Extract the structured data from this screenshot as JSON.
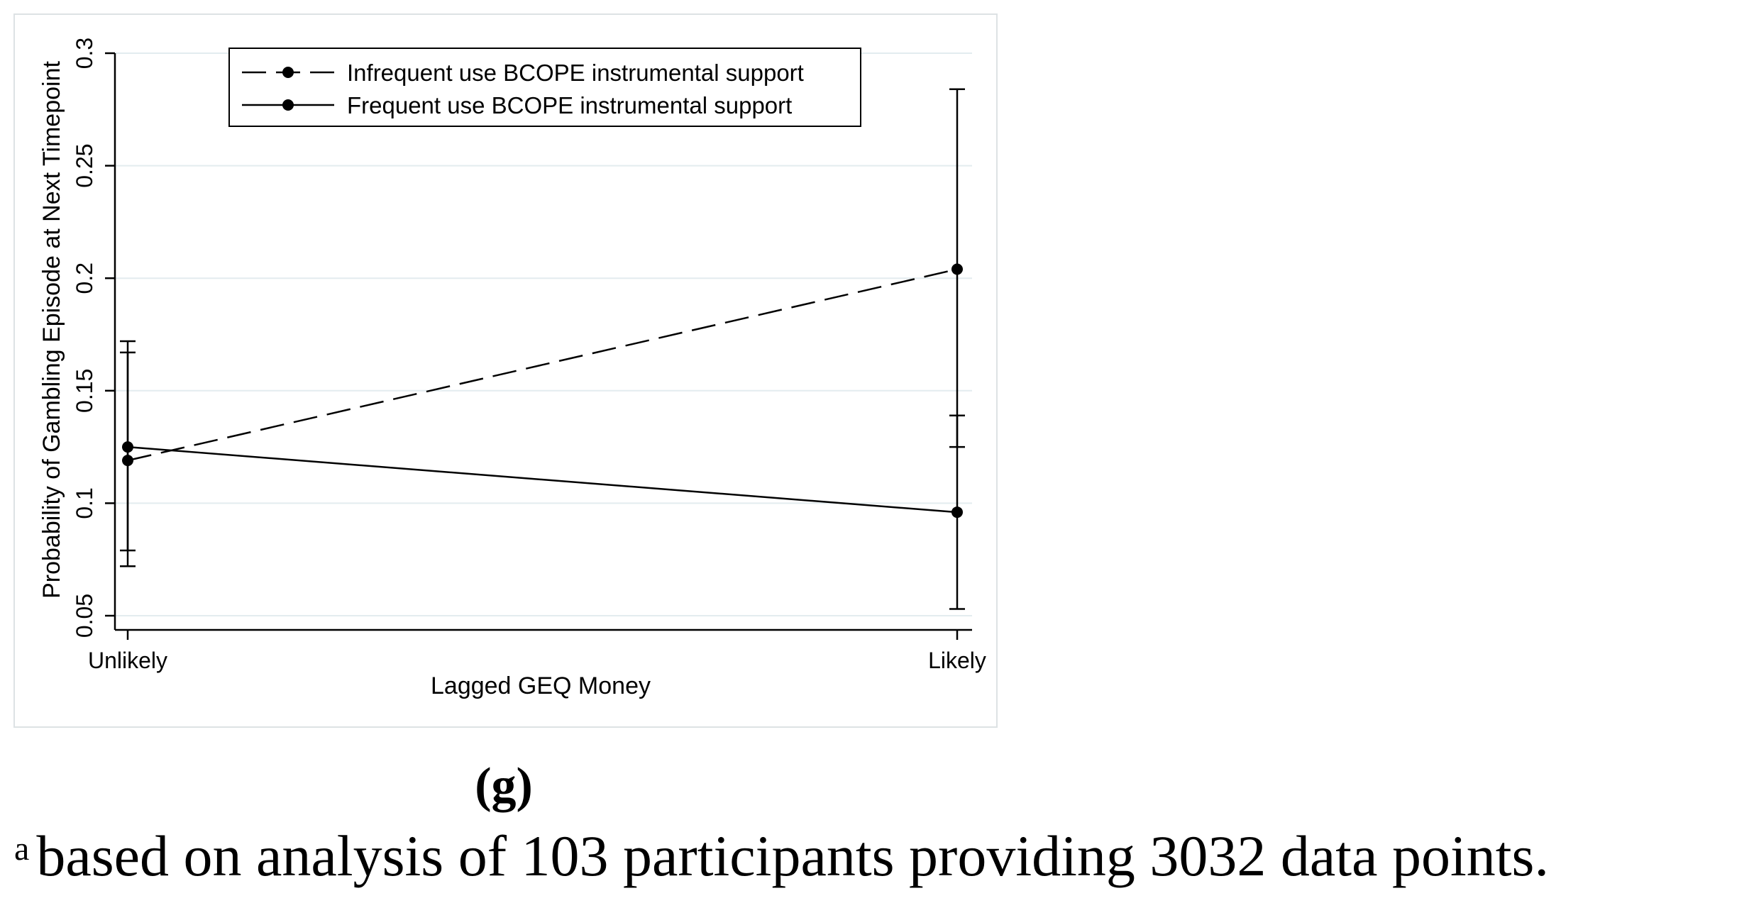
{
  "panel_label": "(g)",
  "footnote": {
    "marker": "a",
    "text": "based on analysis of 103 participants providing 3032 data points."
  },
  "chart_data": {
    "type": "line",
    "title": "",
    "xlabel": "Lagged GEQ Money",
    "ylabel": "Probability of Gambling Episode at Next Timepoint",
    "categories": [
      "Unlikely",
      "Likely"
    ],
    "ylim": [
      0.05,
      0.3
    ],
    "yticks": [
      0.05,
      0.1,
      0.15,
      0.2,
      0.25,
      0.3
    ],
    "ytick_labels": [
      "0.05",
      "0.1",
      "0.15",
      "0.2",
      "0.25",
      "0.3"
    ],
    "grid": true,
    "legend_position": "top",
    "series": [
      {
        "name": "Infrequent use BCOPE instrumental support",
        "style": "dashed",
        "values": [
          0.119,
          0.204
        ],
        "ci_low": [
          0.079,
          0.125
        ],
        "ci_high": [
          0.167,
          0.284
        ]
      },
      {
        "name": "Frequent use BCOPE instrumental support",
        "style": "solid",
        "values": [
          0.125,
          0.096
        ],
        "ci_low": [
          0.072,
          0.053
        ],
        "ci_high": [
          0.172,
          0.139
        ]
      }
    ],
    "colors": {
      "line": "#000000",
      "grid": "#e3ecef",
      "frame": "#dde2e4",
      "background": "#ffffff"
    }
  }
}
